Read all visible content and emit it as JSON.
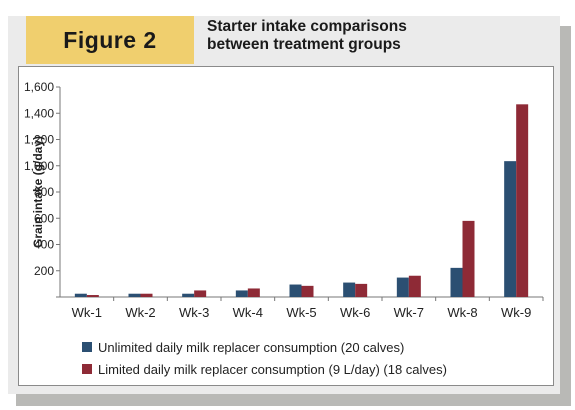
{
  "figure_label": "Figure 2",
  "title_line1": "Starter intake comparisons",
  "title_line2": "between treatment groups",
  "colors": {
    "series1": "#2b4f72",
    "series2": "#8e2a36",
    "label_bg": "#f0cf6e",
    "panel_bg": "#ebebeb"
  },
  "chart_data": {
    "type": "bar",
    "title": "Starter intake comparisons between treatment groups",
    "xlabel": "",
    "ylabel": "Grain intake (g/day)",
    "ylim": [
      0,
      1600
    ],
    "yticks": [
      0,
      200,
      400,
      600,
      800,
      1000,
      1200,
      1400,
      1600
    ],
    "ytick_labels": [
      "",
      "200",
      "400",
      "600",
      "800",
      "1,000",
      "1,200",
      "1,400",
      "1,600"
    ],
    "grid": false,
    "legend_position": "bottom-left",
    "categories": [
      "Wk-1",
      "Wk-2",
      "Wk-3",
      "Wk-4",
      "Wk-5",
      "Wk-6",
      "Wk-7",
      "Wk-8",
      "Wk-9"
    ],
    "series": [
      {
        "name": "Unlimited daily milk replacer consumption (20 calves)",
        "values": [
          25,
          25,
          25,
          50,
          95,
          110,
          148,
          222,
          1035
        ]
      },
      {
        "name": "Limited daily milk replacer consumption (9 L/day) (18 calves)",
        "values": [
          15,
          25,
          50,
          65,
          85,
          100,
          162,
          580,
          1468
        ]
      }
    ]
  }
}
